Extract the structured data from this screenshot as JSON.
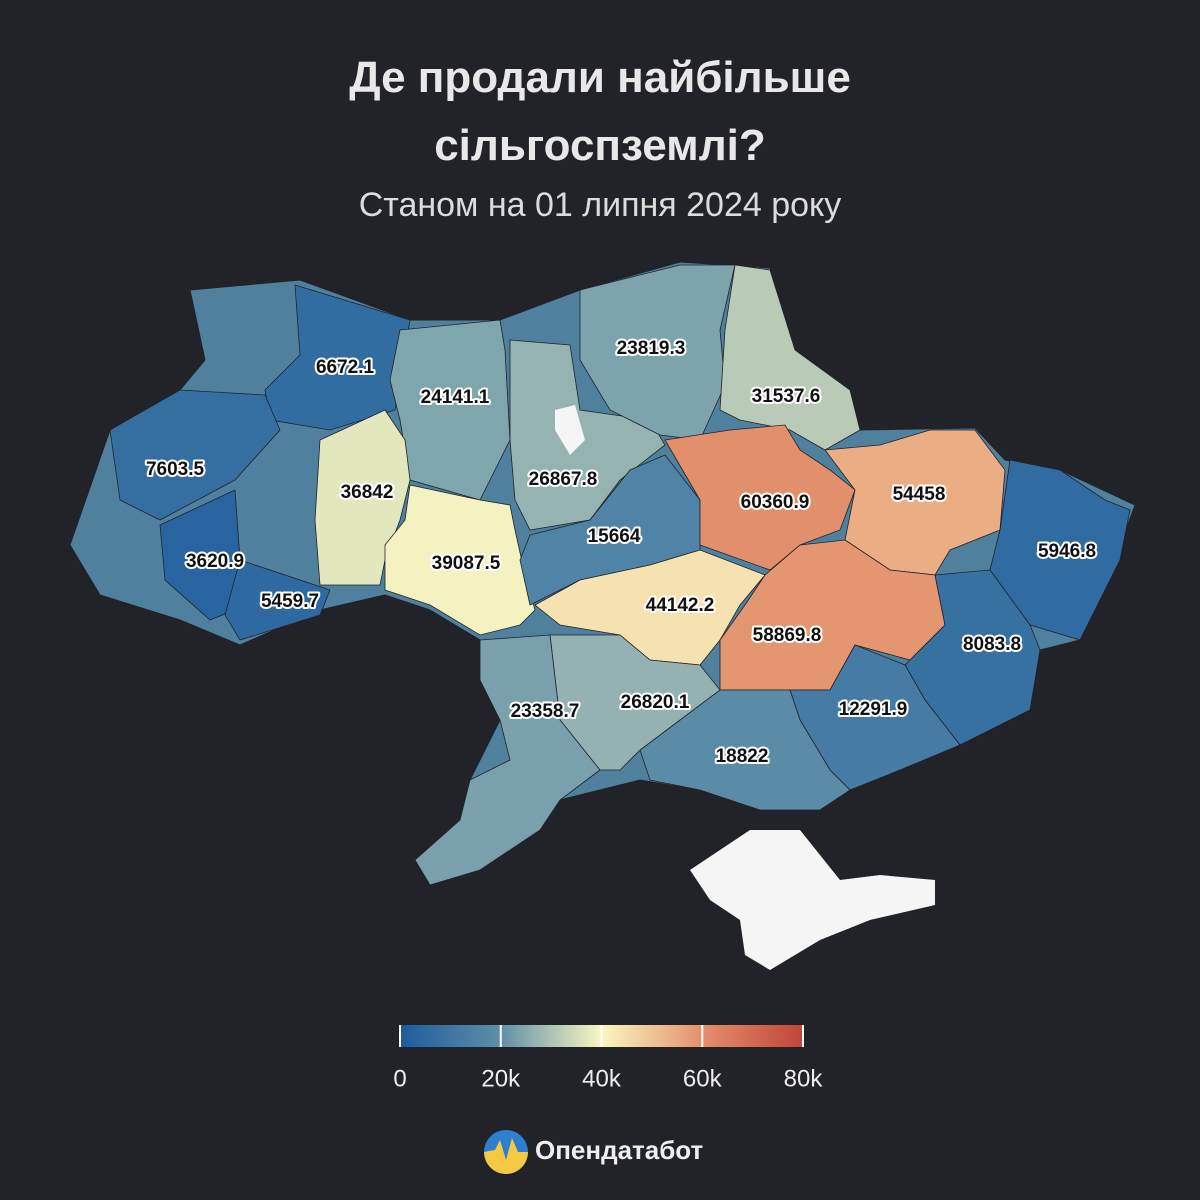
{
  "chart_data": {
    "type": "choropleth",
    "title": "Де продали найбільше сільгоспземлі?",
    "subtitle": "Станом на 01 липня 2024 року",
    "values": [
      6672.1,
      7603.5,
      3620.9,
      5459.7,
      24141.1,
      36842,
      39087.5,
      26867.8,
      23819.3,
      31537.6,
      15664,
      60360.9,
      54458,
      44142.2,
      58869.8,
      5946.8,
      8083.8,
      12291.9,
      18822,
      26820.1,
      23358.7
    ],
    "colorlim": [
      0,
      80000
    ],
    "colorticks": [
      0,
      {
        "value": 20000,
        "label": "20k"
      },
      {
        "value": 40000,
        "label": "40k"
      },
      {
        "value": 60000,
        "label": "60k"
      },
      {
        "value": 80000,
        "label": "80k"
      }
    ],
    "colors": [
      "#1c5c9e",
      "#5f8fa8",
      "#fbf7c2",
      "#e3906c",
      "#c2443a"
    ],
    "brand": "Опендатабот"
  }
}
